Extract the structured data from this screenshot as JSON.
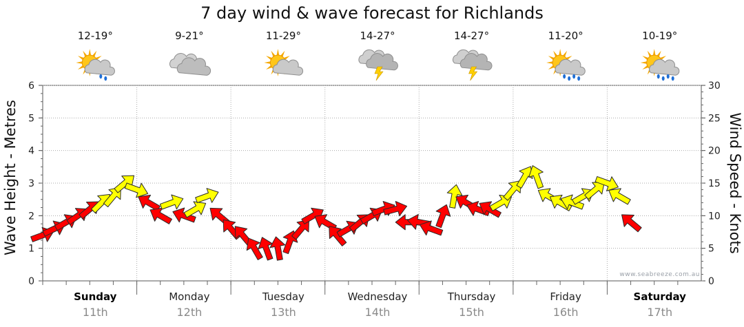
{
  "chart_data": {
    "type": "line",
    "title": "7 day wind & wave forecast for Richlands",
    "y_left": {
      "label": "Wave Height - Metres",
      "range": [
        0,
        6
      ],
      "ticks": [
        0,
        1,
        2,
        3,
        4,
        5,
        6
      ]
    },
    "y_right": {
      "label": "Wind Speed - Knots",
      "range": [
        0,
        30
      ],
      "ticks": [
        0,
        5,
        10,
        15,
        20,
        25,
        30
      ]
    },
    "grid": true,
    "credit": "www.seabreeze.com.au",
    "days": [
      {
        "name": "Sunday",
        "date": "11th",
        "temp": "12-19°",
        "weather": "partly-cloudy-rain",
        "bold": true
      },
      {
        "name": "Monday",
        "date": "12th",
        "temp": "9-21°",
        "weather": "cloudy",
        "bold": false
      },
      {
        "name": "Tuesday",
        "date": "13th",
        "temp": "11-29°",
        "weather": "partly-cloudy",
        "bold": false
      },
      {
        "name": "Wednesday",
        "date": "14th",
        "temp": "14-27°",
        "weather": "storm",
        "bold": false
      },
      {
        "name": "Thursday",
        "date": "15th",
        "temp": "14-27°",
        "weather": "storm",
        "bold": false
      },
      {
        "name": "Friday",
        "date": "16th",
        "temp": "11-20°",
        "weather": "showers",
        "bold": false
      },
      {
        "name": "Saturday",
        "date": "17th",
        "temp": "10-19°",
        "weather": "showers",
        "bold": true
      }
    ],
    "series": [
      {
        "name": "Wind",
        "units": "knots",
        "color_yellow": "#ffff00",
        "color_red": "#ff0000",
        "points": [
          {
            "t": 0.0,
            "speed": 7,
            "dir": 70,
            "c": "red"
          },
          {
            "t": 0.125,
            "speed": 8,
            "dir": 65,
            "c": "red"
          },
          {
            "t": 0.25,
            "speed": 9,
            "dir": 60,
            "c": "red"
          },
          {
            "t": 0.375,
            "speed": 10,
            "dir": 55,
            "c": "red"
          },
          {
            "t": 0.5,
            "speed": 11,
            "dir": 50,
            "c": "red"
          },
          {
            "t": 0.625,
            "speed": 12,
            "dir": 45,
            "c": "yellow"
          },
          {
            "t": 0.75,
            "speed": 13,
            "dir": 40,
            "c": "yellow"
          },
          {
            "t": 0.875,
            "speed": 15,
            "dir": 50,
            "c": "yellow"
          },
          {
            "t": 1.0,
            "speed": 14,
            "dir": 110,
            "c": "yellow"
          },
          {
            "t": 1.125,
            "speed": 12,
            "dir": 300,
            "c": "red"
          },
          {
            "t": 1.25,
            "speed": 10,
            "dir": 300,
            "c": "red"
          },
          {
            "t": 1.375,
            "speed": 12,
            "dir": 70,
            "c": "yellow"
          },
          {
            "t": 1.5,
            "speed": 10,
            "dir": 290,
            "c": "red"
          },
          {
            "t": 1.625,
            "speed": 11,
            "dir": 60,
            "c": "yellow"
          },
          {
            "t": 1.75,
            "speed": 13,
            "dir": 70,
            "c": "yellow"
          },
          {
            "t": 1.875,
            "speed": 10,
            "dir": 310,
            "c": "red"
          },
          {
            "t": 2.0,
            "speed": 8,
            "dir": 320,
            "c": "red"
          },
          {
            "t": 2.125,
            "speed": 7,
            "dir": 320,
            "c": "red"
          },
          {
            "t": 2.25,
            "speed": 5,
            "dir": 330,
            "c": "red"
          },
          {
            "t": 2.375,
            "speed": 5,
            "dir": 340,
            "c": "red"
          },
          {
            "t": 2.5,
            "speed": 5,
            "dir": 350,
            "c": "red"
          },
          {
            "t": 2.625,
            "speed": 6,
            "dir": 20,
            "c": "red"
          },
          {
            "t": 2.75,
            "speed": 8,
            "dir": 40,
            "c": "red"
          },
          {
            "t": 2.875,
            "speed": 10,
            "dir": 60,
            "c": "red"
          },
          {
            "t": 3.0,
            "speed": 9,
            "dir": 300,
            "c": "red"
          },
          {
            "t": 3.125,
            "speed": 7,
            "dir": 320,
            "c": "red"
          },
          {
            "t": 3.25,
            "speed": 8,
            "dir": 60,
            "c": "red"
          },
          {
            "t": 3.375,
            "speed": 9,
            "dir": 50,
            "c": "red"
          },
          {
            "t": 3.5,
            "speed": 10,
            "dir": 60,
            "c": "red"
          },
          {
            "t": 3.625,
            "speed": 11,
            "dir": 70,
            "c": "red"
          },
          {
            "t": 3.75,
            "speed": 11,
            "dir": 75,
            "c": "red"
          },
          {
            "t": 3.875,
            "speed": 9,
            "dir": 270,
            "c": "red"
          },
          {
            "t": 4.0,
            "speed": 9,
            "dir": 280,
            "c": "red"
          },
          {
            "t": 4.125,
            "speed": 8,
            "dir": 290,
            "c": "red"
          },
          {
            "t": 4.25,
            "speed": 10,
            "dir": 20,
            "c": "red"
          },
          {
            "t": 4.375,
            "speed": 13,
            "dir": 10,
            "c": "yellow"
          },
          {
            "t": 4.5,
            "speed": 12,
            "dir": 300,
            "c": "red"
          },
          {
            "t": 4.625,
            "speed": 11,
            "dir": 290,
            "c": "red"
          },
          {
            "t": 4.75,
            "speed": 11,
            "dir": 300,
            "c": "red"
          },
          {
            "t": 4.875,
            "speed": 12,
            "dir": 60,
            "c": "yellow"
          },
          {
            "t": 5.0,
            "speed": 14,
            "dir": 40,
            "c": "yellow"
          },
          {
            "t": 5.125,
            "speed": 16,
            "dir": 30,
            "c": "yellow"
          },
          {
            "t": 5.25,
            "speed": 16,
            "dir": 340,
            "c": "yellow"
          },
          {
            "t": 5.375,
            "speed": 13,
            "dir": 300,
            "c": "yellow"
          },
          {
            "t": 5.5,
            "speed": 12,
            "dir": 300,
            "c": "yellow"
          },
          {
            "t": 5.625,
            "speed": 12,
            "dir": 290,
            "c": "yellow"
          },
          {
            "t": 5.75,
            "speed": 13,
            "dir": 60,
            "c": "yellow"
          },
          {
            "t": 5.875,
            "speed": 14,
            "dir": 50,
            "c": "yellow"
          },
          {
            "t": 6.0,
            "speed": 15,
            "dir": 110,
            "c": "yellow"
          },
          {
            "t": 6.125,
            "speed": 13,
            "dir": 300,
            "c": "yellow"
          },
          {
            "t": 6.25,
            "speed": 9,
            "dir": 310,
            "c": "red"
          }
        ]
      }
    ]
  }
}
